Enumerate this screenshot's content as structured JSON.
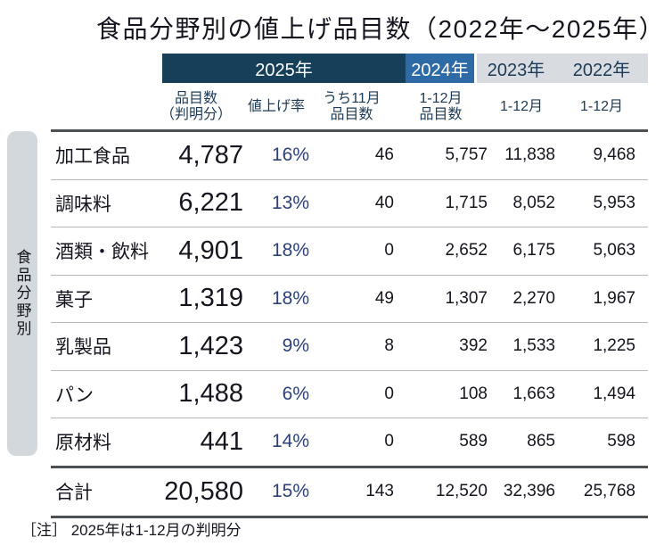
{
  "title": "食品分野別の値上げ品目数（2022年～2025年）",
  "side_label": "食品分野別",
  "header": {
    "y2025": "2025年",
    "y2024": "2024年",
    "y2023": "2023年",
    "y2022": "2022年"
  },
  "subheaders": {
    "items": "品目数\n（判明分）",
    "rate": "値上げ率",
    "nov": "うち11月\n品目数",
    "m2024": "1-12月\n品目数",
    "m2023": "1-12月",
    "m2022": "1-12月"
  },
  "rows": [
    {
      "category": "加工食品",
      "items": "4,787",
      "rate": "16%",
      "nov": "46",
      "y2024": "5,757",
      "y2023": "11,838",
      "y2022": "9,468"
    },
    {
      "category": "調味料",
      "items": "6,221",
      "rate": "13%",
      "nov": "40",
      "y2024": "1,715",
      "y2023": "8,052",
      "y2022": "5,953"
    },
    {
      "category": "酒類・飲料",
      "items": "4,901",
      "rate": "18%",
      "nov": "0",
      "y2024": "2,652",
      "y2023": "6,175",
      "y2022": "5,063"
    },
    {
      "category": "菓子",
      "items": "1,319",
      "rate": "18%",
      "nov": "49",
      "y2024": "1,307",
      "y2023": "2,270",
      "y2022": "1,967"
    },
    {
      "category": "乳製品",
      "items": "1,423",
      "rate": "9%",
      "nov": "8",
      "y2024": "392",
      "y2023": "1,533",
      "y2022": "1,225"
    },
    {
      "category": "パン",
      "items": "1,488",
      "rate": "6%",
      "nov": "0",
      "y2024": "108",
      "y2023": "1,663",
      "y2022": "1,494"
    },
    {
      "category": "原材料",
      "items": "441",
      "rate": "14%",
      "nov": "0",
      "y2024": "589",
      "y2023": "865",
      "y2022": "598"
    }
  ],
  "total": {
    "category": "合計",
    "items": "20,580",
    "rate": "15%",
    "nov": "143",
    "y2024": "12,520",
    "y2023": "32,396",
    "y2022": "25,768"
  },
  "note": "［注］ 2025年は1-12月の判明分",
  "colors": {
    "header_2025_bg": "#163f5a",
    "header_2024_bg": "#2e6aa5",
    "header_gray_bg": "#d8dce0",
    "header_text_dark": "#1c3a55",
    "rate_text": "#2b4178",
    "body_text": "#15151f",
    "thin_rule": "#b4b8bc",
    "thick_rule": "#4d5156",
    "side_bar_bg": "#d3d8dc"
  },
  "chart_data": {
    "type": "table",
    "title": "食品分野別の値上げ品目数（2022年～2025年）",
    "column_groups": [
      "2025年",
      "2024年",
      "2023年",
      "2022年"
    ],
    "columns": [
      "食品分野",
      "2025年 品目数（判明分）",
      "2025年 値上げ率",
      "2025年 うち11月品目数",
      "2024年 1-12月品目数",
      "2023年 1-12月",
      "2022年 1-12月"
    ],
    "rows": [
      [
        "加工食品",
        4787,
        "16%",
        46,
        5757,
        11838,
        9468
      ],
      [
        "調味料",
        6221,
        "13%",
        40,
        1715,
        8052,
        5953
      ],
      [
        "酒類・飲料",
        4901,
        "18%",
        0,
        2652,
        6175,
        5063
      ],
      [
        "菓子",
        1319,
        "18%",
        49,
        1307,
        2270,
        1967
      ],
      [
        "乳製品",
        1423,
        "9%",
        8,
        392,
        1533,
        1225
      ],
      [
        "パン",
        1488,
        "6%",
        0,
        108,
        1663,
        1494
      ],
      [
        "原材料",
        441,
        "14%",
        0,
        589,
        865,
        598
      ],
      [
        "合計",
        20580,
        "15%",
        143,
        12520,
        32396,
        25768
      ]
    ],
    "footnote": "［注］ 2025年は1-12月の判明分"
  }
}
